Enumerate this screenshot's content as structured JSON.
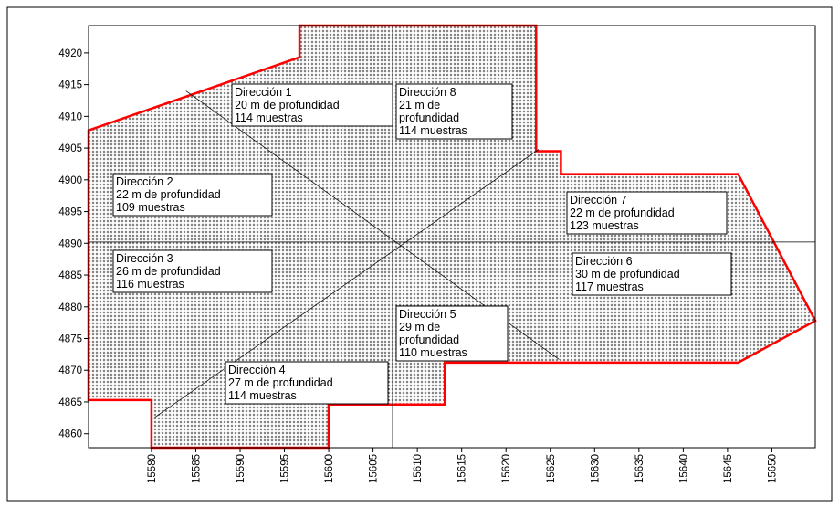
{
  "map": {
    "xlim": [
      15572.9,
      15654.9
    ],
    "ylim": [
      4857.8,
      4924.3
    ],
    "xticks": [
      15580,
      15585,
      15590,
      15595,
      15600,
      15605,
      15610,
      15615,
      15620,
      15625,
      15630,
      15635,
      15640,
      15645,
      15650
    ],
    "yticks": [
      4860,
      4865,
      4870,
      4875,
      4880,
      4885,
      4890,
      4895,
      4900,
      4905,
      4910,
      4915,
      4920
    ],
    "boundary": {
      "color": "#ff0000",
      "x": [
        15572.9,
        15596.7,
        15596.7,
        15623.4,
        15623.4,
        15626.2,
        15626.2,
        15646.2,
        15654.9,
        15646.2,
        15613.1,
        15613.1,
        15600.0,
        15600.0,
        15580.0,
        15580.0,
        15572.9
      ],
      "y": [
        4907.8,
        4919.3,
        4924.3,
        4924.3,
        4904.5,
        4904.5,
        4900.9,
        4900.9,
        4877.8,
        4871.2,
        4871.2,
        4864.6,
        4864.6,
        4857.8,
        4857.8,
        4865.3,
        4865.3
      ]
    },
    "direction_lines": [
      {
        "x": [
          15607.2,
          15607.2
        ],
        "y": [
          4857.8,
          4924.3
        ]
      },
      {
        "x": [
          15572.9,
          15654.9
        ],
        "y": [
          4890.2,
          4890.2
        ]
      },
      {
        "x": [
          15583.9,
          15626.0
        ],
        "y": [
          4914.0,
          4871.7
        ]
      },
      {
        "x": [
          15580.2,
          15623.7
        ],
        "y": [
          4862.4,
          4904.8
        ]
      }
    ],
    "labels": [
      {
        "lines": [
          "Dirección 1",
          "20 m de profundidad",
          "114 muestras"
        ]
      },
      {
        "lines": [
          "Dirección 8",
          "21 m de",
          "profundidad",
          "114 muestras"
        ]
      },
      {
        "lines": [
          "Dirección 2",
          "22 m de profundidad",
          "109 muestras"
        ]
      },
      {
        "lines": [
          "Dirección 7",
          "22 m de profundidad",
          "123 muestras"
        ]
      },
      {
        "lines": [
          "Dirección 3",
          "26 m de profundidad",
          "116 muestras"
        ]
      },
      {
        "lines": [
          "Dirección 6",
          "30 m de profundidad",
          "117 muestras"
        ]
      },
      {
        "lines": [
          "Dirección 5",
          "29 m de",
          "profundidad",
          "110 muestras"
        ]
      },
      {
        "lines": [
          "Dirección 4",
          "27 m de profundidad",
          "114 muestras"
        ]
      }
    ]
  }
}
